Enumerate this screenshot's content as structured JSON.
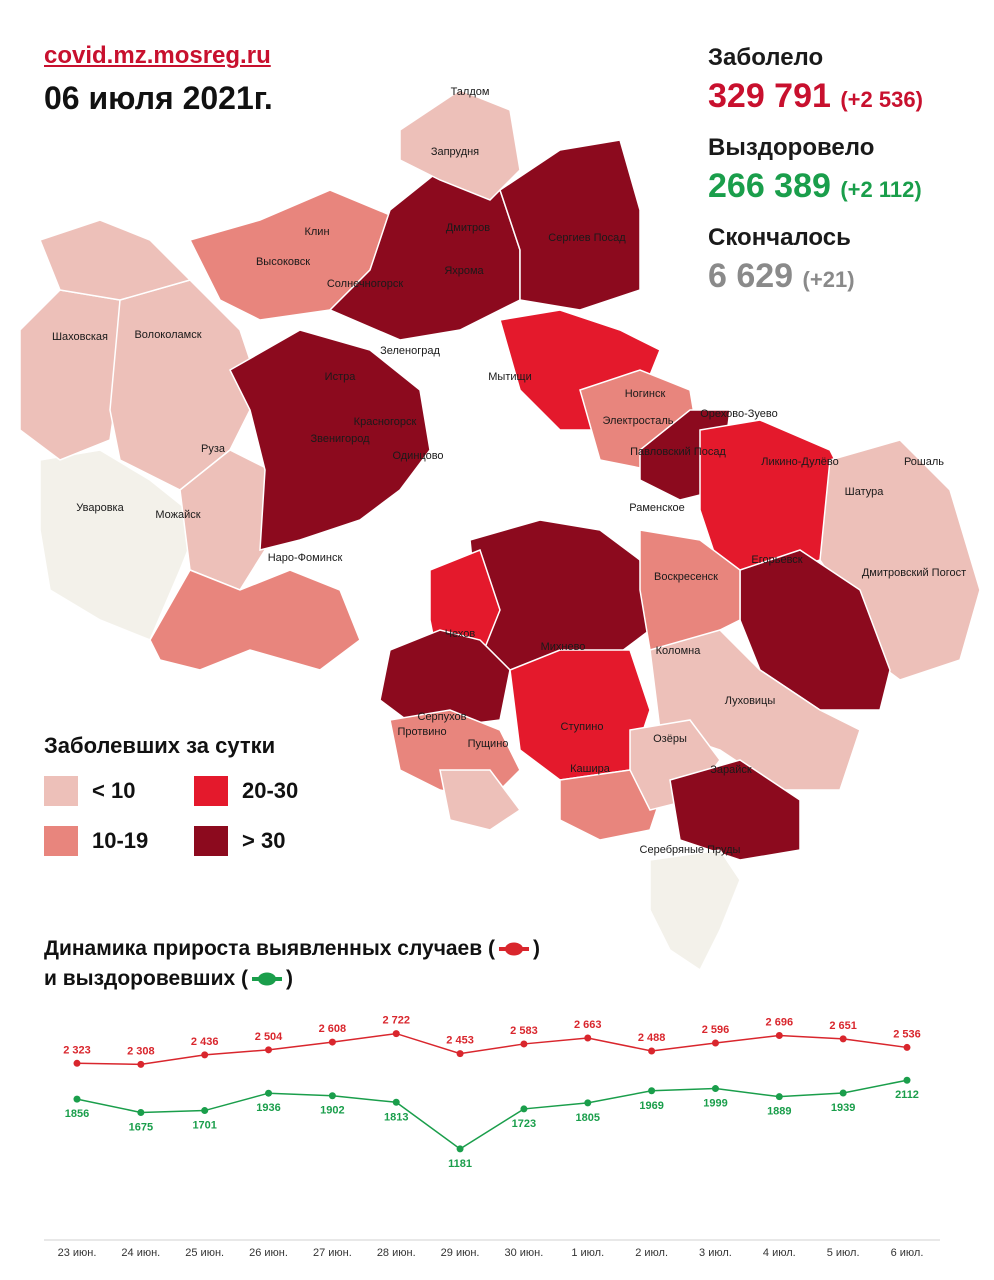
{
  "header": {
    "site": "covid.mz.mosreg.ru",
    "date": "06 июля 2021г."
  },
  "stats": {
    "sick": {
      "label": "Заболело",
      "value": "329 791",
      "delta": "(+2 536)"
    },
    "recovered": {
      "label": "Выздоровело",
      "value": "266 389",
      "delta": "(+2 112)"
    },
    "deaths": {
      "label": "Скончалось",
      "value": "6 629",
      "delta": "(+21)"
    }
  },
  "colors": {
    "lt10": "#edc0b9",
    "c10_19": "#e8857d",
    "c20_30": "#e4192c",
    "gt30": "#8c0a1e",
    "none": "#f3f1ea",
    "sick_line": "#d9262d",
    "recov_line": "#1a9e4b"
  },
  "legend": {
    "title": "Заболевших за сутки",
    "items": [
      {
        "label": "< 10",
        "color_key": "lt10"
      },
      {
        "label": "20-30",
        "color_key": "c20_30"
      },
      {
        "label": "10-19",
        "color_key": "c10_19"
      },
      {
        "label": "> 30",
        "color_key": "gt30"
      }
    ]
  },
  "map_labels": [
    "Талдом",
    "Запрудня",
    "Клин",
    "Высоковск",
    "Дмитров",
    "Сергиев Посад",
    "Яхрома",
    "Солнечногорск",
    "Шаховская",
    "Волоколамск",
    "Зеленоград",
    "Истра",
    "Мытищи",
    "Ногинск",
    "Красногорск",
    "Электросталь",
    "Орехово-Зуево",
    "Звенигород",
    "Одинцово",
    "Павловский Посад",
    "Ликино-Дулёво",
    "Руза",
    "Рошаль",
    "Шатура",
    "Уваровка",
    "Можайск",
    "Раменское",
    "Наро-Фоминск",
    "Егорьевск",
    "Дмитровский Погост",
    "Воскресенск",
    "Чехов",
    "Михнево",
    "Коломна",
    "Серпухов",
    "Луховицы",
    "Ступино",
    "Пущино",
    "Озёры",
    "Протвино",
    "Кашира",
    "Зарайск",
    "Серебряные Пруды"
  ],
  "trend": {
    "title_line1": "Динамика прироста выявленных случаев (",
    "title_line1_end": ")",
    "title_line2": "и выздоровевших (",
    "title_line2_end": ")"
  },
  "chart_data": {
    "type": "line",
    "categories": [
      "23 июн.",
      "24 июн.",
      "25 июн.",
      "26 июн.",
      "27 июн.",
      "28 июн.",
      "29 июн.",
      "30 июн.",
      "1 июл.",
      "2 июл.",
      "3 июл.",
      "4 июл.",
      "5 июл.",
      "6 июл."
    ],
    "series": [
      {
        "color": "#d9262d",
        "values": [
          2323,
          2308,
          2436,
          2504,
          2608,
          2722,
          2453,
          2583,
          2663,
          2488,
          2596,
          2696,
          2651,
          2536
        ],
        "labels": [
          "2 323",
          "2 308",
          "2 436",
          "2 504",
          "2 608",
          "2 722",
          "2 453",
          "2 583",
          "2 663",
          "2 488",
          "2 596",
          "2 696",
          "2 651",
          "2 536"
        ]
      },
      {
        "color": "#1a9e4b",
        "values": [
          1856,
          1675,
          1701,
          1936,
          1902,
          1813,
          1181,
          1723,
          1805,
          1969,
          1999,
          1889,
          1939,
          2112
        ],
        "labels": [
          "1856",
          "1675",
          "1701",
          "1936",
          "1902",
          "1813",
          "1181",
          "1723",
          "1805",
          "1969",
          "1999",
          "1889",
          "1939",
          "2112"
        ]
      }
    ],
    "grid": false
  }
}
